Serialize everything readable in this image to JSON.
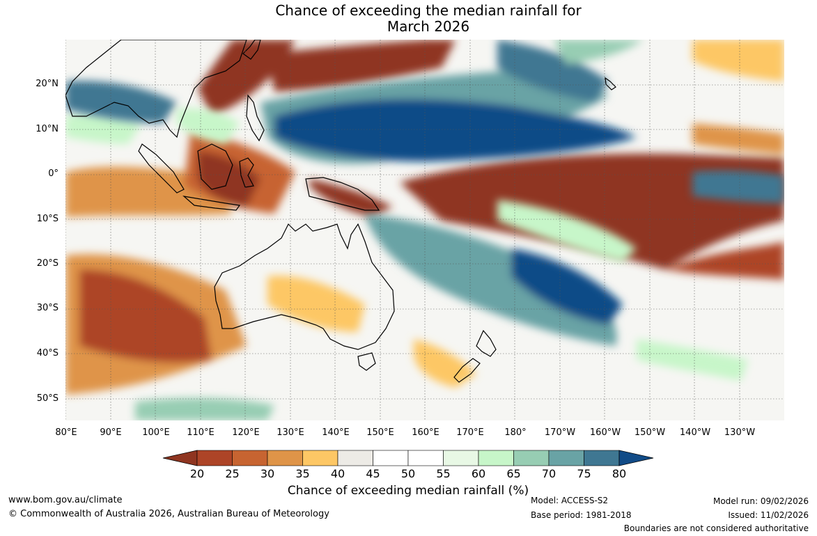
{
  "title_line1": "Chance of exceeding the median rainfall for",
  "title_line2": "March 2026",
  "lat_labels": [
    "20°N",
    "10°N",
    "0°",
    "10°S",
    "20°S",
    "30°S",
    "40°S",
    "50°S"
  ],
  "lon_labels": [
    "80°E",
    "90°E",
    "100°E",
    "110°E",
    "120°E",
    "130°E",
    "140°E",
    "150°E",
    "160°E",
    "170°E",
    "180°",
    "170°W",
    "160°W",
    "150°W",
    "140°W",
    "130°W"
  ],
  "colorbar": {
    "ticks": [
      "20",
      "25",
      "30",
      "35",
      "40",
      "45",
      "50",
      "55",
      "60",
      "65",
      "70",
      "75",
      "80"
    ],
    "colors": [
      "#8f3520",
      "#ad4427",
      "#c76431",
      "#df9448",
      "#fdc765",
      "#edebe6",
      "#ffffff",
      "#ffffff",
      "#e8f8e5",
      "#c7f6c9",
      "#97cdb3",
      "#69a3a5",
      "#3f7792",
      "#114b87"
    ],
    "label": "Chance of exceeding median rainfall (%)"
  },
  "footer": {
    "website": "www.bom.gov.au/climate",
    "copyright": "© Commonwealth of Australia 2026, Australian Bureau of Meteorology",
    "model": "Model: ACCESS-S2",
    "base_period": "Base period: 1981-2018",
    "model_run": "Model run: 09/02/2026",
    "issued": "Issued: 11/02/2026",
    "disclaimer": "Boundaries are not considered authoritative"
  }
}
